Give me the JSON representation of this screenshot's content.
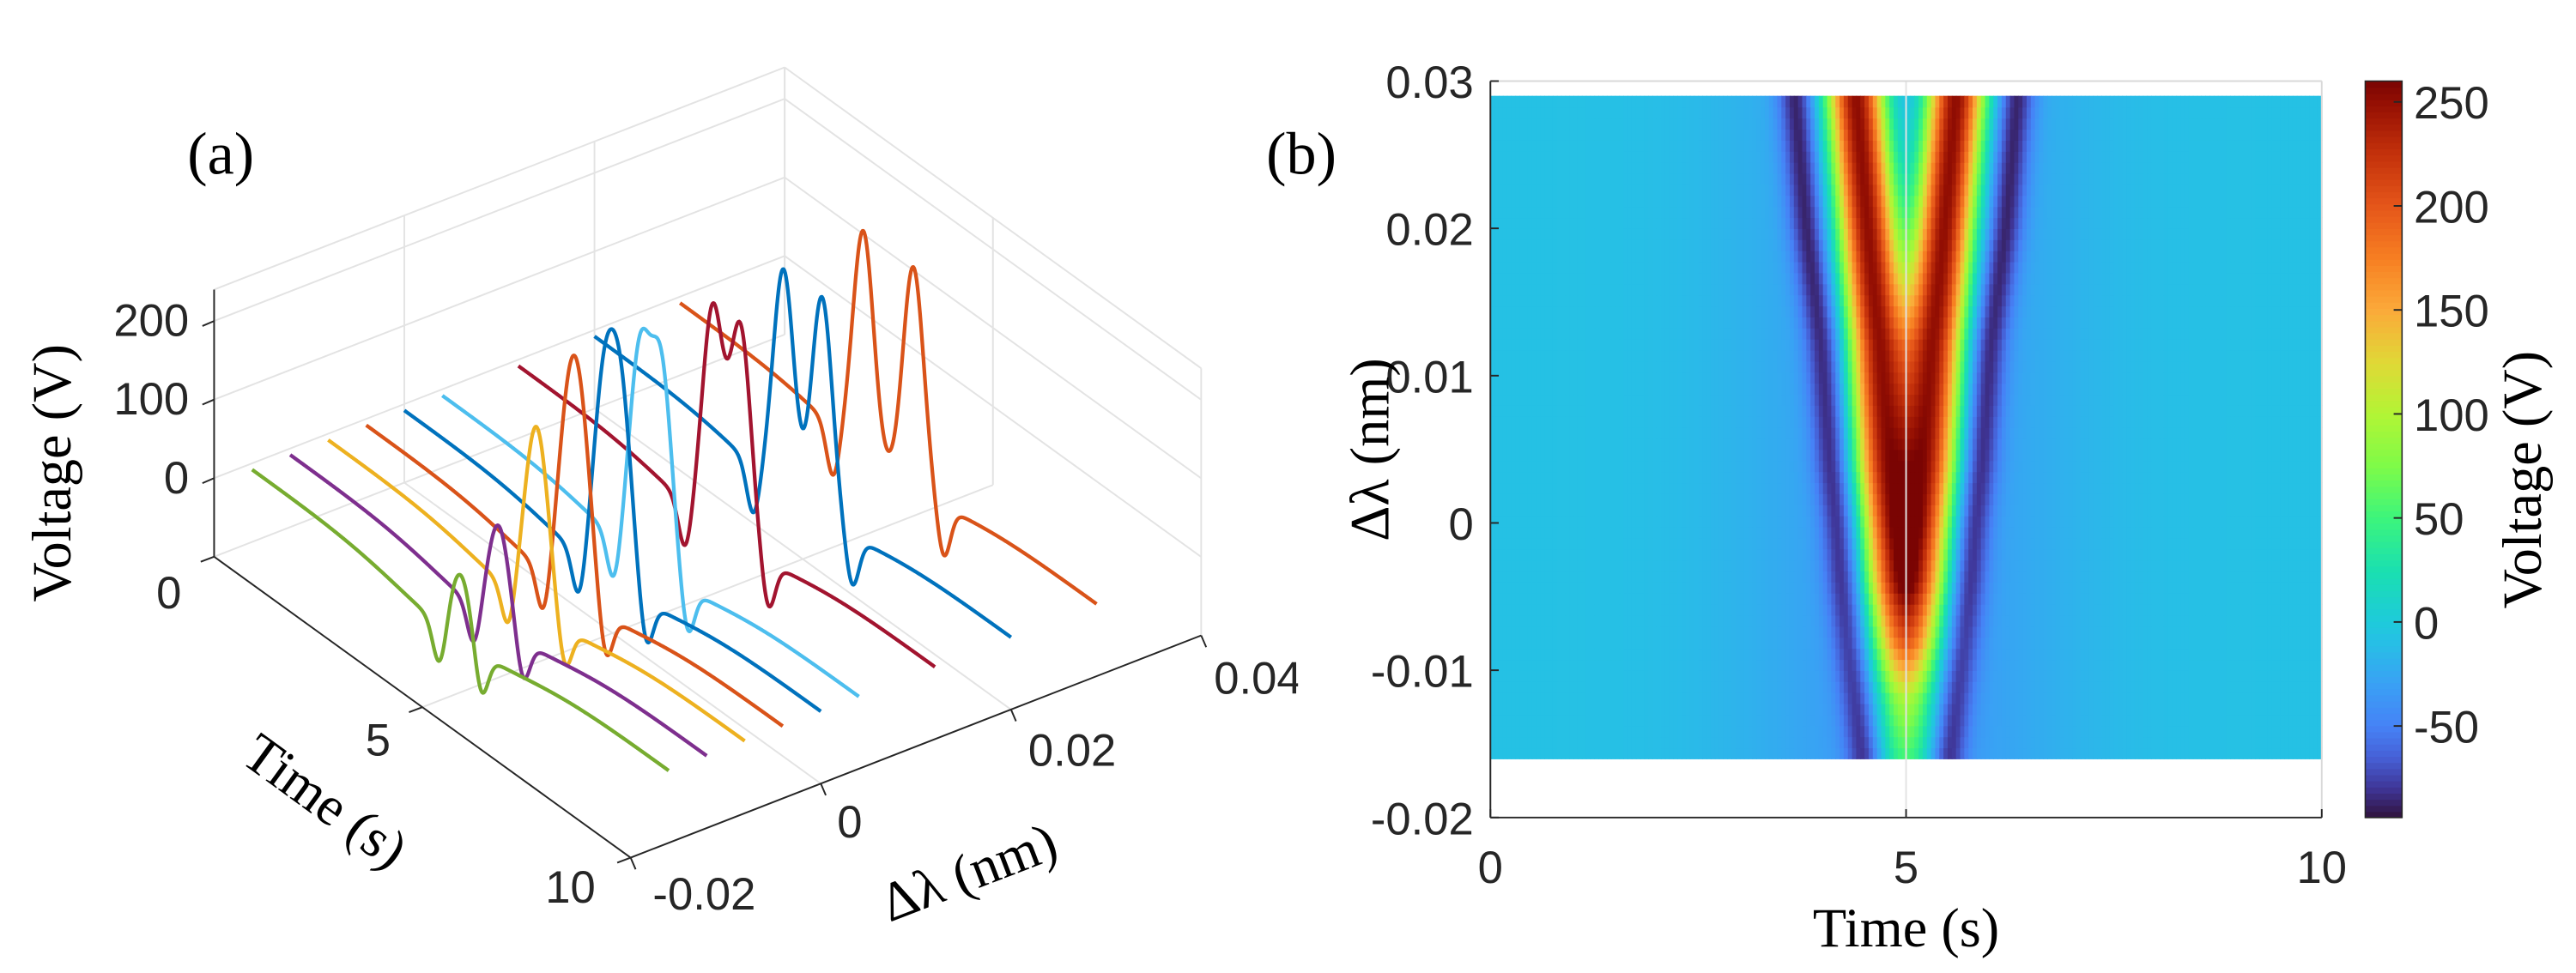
{
  "chart_data": [
    {
      "type": "line",
      "projection": "3d",
      "panel_label": "(a)",
      "xlabel": "Time (s)",
      "ylabel": "Δλ (nm)",
      "zlabel": "Voltage (V)",
      "x_ticks": [
        "0",
        "5",
        "10"
      ],
      "y_ticks": [
        "-0.02",
        "0",
        "0.02",
        "0.04"
      ],
      "z_ticks": [
        "0",
        "100",
        "200"
      ],
      "xlim": [
        0,
        10
      ],
      "ylim": [
        -0.02,
        0.04
      ],
      "zlim": [
        -100,
        240
      ],
      "grid": true,
      "series": [
        {
          "dlambda": 0.029,
          "color": "#D95319"
        },
        {
          "dlambda": 0.02,
          "color": "#0072BD"
        },
        {
          "dlambda": 0.012,
          "color": "#A2142F"
        },
        {
          "dlambda": 0.004,
          "color": "#4DBEEE"
        },
        {
          "dlambda": 0.0,
          "color": "#0072BD"
        },
        {
          "dlambda": -0.004,
          "color": "#D95319"
        },
        {
          "dlambda": -0.008,
          "color": "#EDB120"
        },
        {
          "dlambda": -0.012,
          "color": "#7E2F8E"
        },
        {
          "dlambda": -0.016,
          "color": "#77AC30"
        }
      ]
    },
    {
      "type": "heatmap",
      "panel_label": "(b)",
      "xlabel": "Time (s)",
      "ylabel": "Δλ (nm)",
      "colorbar_label": "Voltage (V)",
      "x_ticks": [
        "0",
        "5",
        "10"
      ],
      "y_ticks": [
        "0.03",
        "0.02",
        "0.01",
        "0",
        "-0.01",
        "-0.02"
      ],
      "colorbar_ticks": [
        "250",
        "200",
        "150",
        "100",
        "50",
        "0",
        "-50"
      ],
      "xlim": [
        0,
        10
      ],
      "ylim": [
        -0.02,
        0.03
      ],
      "data_extent_dlambda": [
        -0.016,
        0.029
      ],
      "color_range": [
        -94,
        260
      ],
      "colormap": [
        [
          -94,
          "#30123b"
        ],
        [
          -80,
          "#3f3596"
        ],
        [
          -65,
          "#4660d6"
        ],
        [
          -50,
          "#4682f6"
        ],
        [
          -30,
          "#3aa0f5"
        ],
        [
          -10,
          "#27bfe6"
        ],
        [
          0,
          "#1ecadb"
        ],
        [
          25,
          "#1ae0b0"
        ],
        [
          50,
          "#3cf57c"
        ],
        [
          75,
          "#7efb48"
        ],
        [
          100,
          "#b2f535"
        ],
        [
          125,
          "#e0d836"
        ],
        [
          150,
          "#fbaa3a"
        ],
        [
          175,
          "#f77f22"
        ],
        [
          200,
          "#e5561a"
        ],
        [
          225,
          "#c4310b"
        ],
        [
          250,
          "#940f03"
        ],
        [
          260,
          "#7a0403"
        ]
      ]
    }
  ],
  "voltage_profiles": {
    "background_V": {
      "far": -8,
      "near_t5": -35
    },
    "rows": [
      {
        "dlambda": -0.016,
        "peak_times": [
          5.0,
          5.0
        ],
        "peak_V": 50,
        "trough_times": [
          4.5,
          5.5
        ],
        "trough_V": -90
      },
      {
        "dlambda": -0.012,
        "peak_times": [
          4.94,
          5.06
        ],
        "peak_V": 90,
        "trough_times": [
          4.41,
          5.59
        ],
        "trough_V": -85
      },
      {
        "dlambda": -0.008,
        "peak_times": [
          4.88,
          5.12
        ],
        "peak_V": 180,
        "trough_times": [
          4.32,
          5.68
        ],
        "trough_V": -85
      },
      {
        "dlambda": -0.004,
        "peak_times": [
          4.83,
          5.17
        ],
        "peak_V": 235,
        "trough_times": [
          4.25,
          5.75
        ],
        "trough_V": -90
      },
      {
        "dlambda": 0.0,
        "peak_times": [
          4.79,
          5.21
        ],
        "peak_V": 250,
        "trough_times": [
          4.19,
          5.81
        ],
        "trough_V": -90
      },
      {
        "dlambda": 0.004,
        "peak_times": [
          4.74,
          5.26
        ],
        "peak_V": 250,
        "trough_times": [
          4.11,
          5.89
        ],
        "trough_V": -90
      },
      {
        "dlambda": 0.012,
        "peak_times": [
          4.67,
          5.33
        ],
        "peak_V": 250,
        "trough_times": [
          4.0,
          6.0
        ],
        "trough_V": -90
      },
      {
        "dlambda": 0.02,
        "peak_times": [
          4.54,
          5.46
        ],
        "peak_V": 250,
        "trough_times": [
          3.81,
          6.19
        ],
        "trough_V": -90
      },
      {
        "dlambda": 0.029,
        "peak_times": [
          4.4,
          5.6
        ],
        "peak_V": 250,
        "trough_times": [
          3.67,
          6.33
        ],
        "trough_V": -90
      }
    ]
  }
}
